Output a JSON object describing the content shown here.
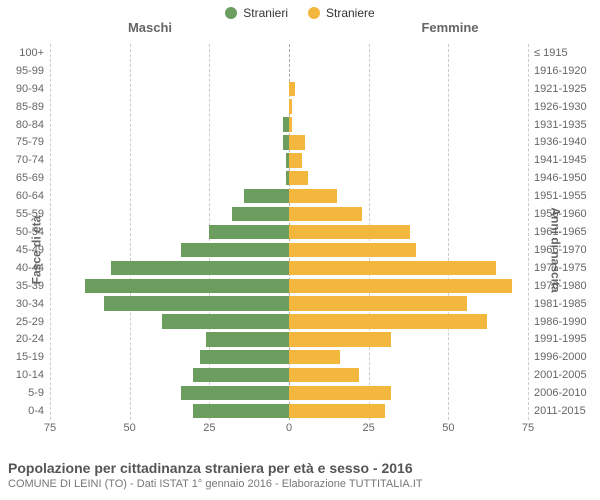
{
  "legend": {
    "male": {
      "label": "Stranieri",
      "color": "#6a9d5e"
    },
    "female": {
      "label": "Straniere",
      "color": "#f3b73e"
    }
  },
  "gender_headers": {
    "male": "Maschi",
    "female": "Femmine"
  },
  "axis_titles": {
    "left": "Fasce di età",
    "right": "Anni di nascita"
  },
  "chart": {
    "type": "population-pyramid",
    "xlim": 75,
    "xticks_left": [
      75,
      50,
      25,
      0
    ],
    "xticks_right": [
      0,
      25,
      50,
      75
    ],
    "grid_color": "#cccccc",
    "bar_color_male": "#6a9d5e",
    "bar_color_female": "#f3b73e",
    "background_color": "#ffffff",
    "label_fontsize": 11,
    "rows": [
      {
        "age": "100+",
        "birth": "≤ 1915",
        "m": 0,
        "f": 0
      },
      {
        "age": "95-99",
        "birth": "1916-1920",
        "m": 0,
        "f": 0
      },
      {
        "age": "90-94",
        "birth": "1921-1925",
        "m": 0,
        "f": 2
      },
      {
        "age": "85-89",
        "birth": "1926-1930",
        "m": 0,
        "f": 1
      },
      {
        "age": "80-84",
        "birth": "1931-1935",
        "m": 2,
        "f": 1
      },
      {
        "age": "75-79",
        "birth": "1936-1940",
        "m": 2,
        "f": 5
      },
      {
        "age": "70-74",
        "birth": "1941-1945",
        "m": 1,
        "f": 4
      },
      {
        "age": "65-69",
        "birth": "1946-1950",
        "m": 1,
        "f": 6
      },
      {
        "age": "60-64",
        "birth": "1951-1955",
        "m": 14,
        "f": 15
      },
      {
        "age": "55-59",
        "birth": "1956-1960",
        "m": 18,
        "f": 23
      },
      {
        "age": "50-54",
        "birth": "1961-1965",
        "m": 25,
        "f": 38
      },
      {
        "age": "45-49",
        "birth": "1966-1970",
        "m": 34,
        "f": 40
      },
      {
        "age": "40-44",
        "birth": "1971-1975",
        "m": 56,
        "f": 65
      },
      {
        "age": "35-39",
        "birth": "1976-1980",
        "m": 64,
        "f": 70
      },
      {
        "age": "30-34",
        "birth": "1981-1985",
        "m": 58,
        "f": 56
      },
      {
        "age": "25-29",
        "birth": "1986-1990",
        "m": 40,
        "f": 62
      },
      {
        "age": "20-24",
        "birth": "1991-1995",
        "m": 26,
        "f": 32
      },
      {
        "age": "15-19",
        "birth": "1996-2000",
        "m": 28,
        "f": 16
      },
      {
        "age": "10-14",
        "birth": "2001-2005",
        "m": 30,
        "f": 22
      },
      {
        "age": "5-9",
        "birth": "2006-2010",
        "m": 34,
        "f": 32
      },
      {
        "age": "0-4",
        "birth": "2011-2015",
        "m": 30,
        "f": 30
      }
    ]
  },
  "footer": {
    "title": "Popolazione per cittadinanza straniera per età e sesso - 2016",
    "subtitle": "COMUNE DI LEINI (TO) - Dati ISTAT 1° gennaio 2016 - Elaborazione TUTTITALIA.IT"
  }
}
